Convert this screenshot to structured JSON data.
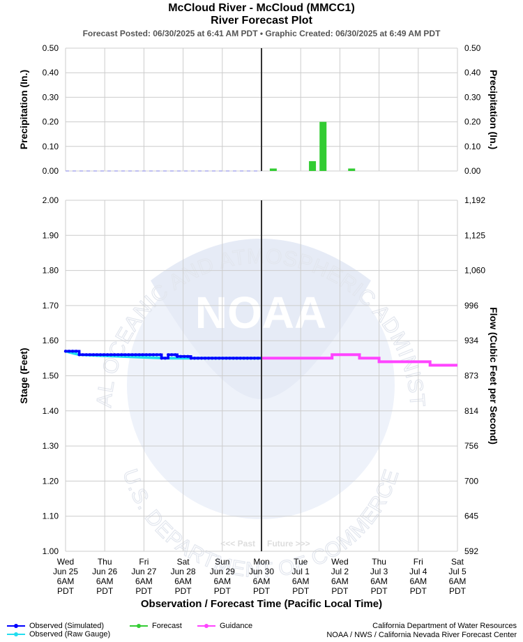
{
  "header": {
    "title_line1": "McCloud River - McCloud (MMCC1)",
    "title_line2": "River Forecast Plot",
    "subtitle": "Forecast Posted: 06/30/2025 at 6:41 AM PDT  •  Graphic Created: 06/30/2025 at 6:49 AM PDT"
  },
  "chart_data": [
    {
      "type": "bar",
      "name": "precipitation",
      "ylabel": "Precipitation (In.)",
      "ylabel_right": "Precipitation (In.)",
      "ylim": [
        0,
        0.5
      ],
      "yticks": [
        "0.00",
        "0.10",
        "0.20",
        "0.30",
        "0.40",
        "0.50"
      ],
      "grid": true,
      "observed_baseline": {
        "x_start": 0,
        "x_end": 5,
        "value": 0.0
      },
      "forecast_bars": [
        {
          "x": 5.3,
          "value": 0.01
        },
        {
          "x": 6.3,
          "value": 0.04
        },
        {
          "x": 6.57,
          "value": 0.2
        },
        {
          "x": 7.3,
          "value": 0.01
        }
      ]
    },
    {
      "type": "line",
      "name": "stage",
      "ylabel": "Stage (Feet)",
      "ylabel_right": "Flow (Cubic Feet per Second)",
      "xlabel": "Observation / Forecast Time (Pacific Local Time)",
      "ylim": [
        1.0,
        2.0
      ],
      "yticks": [
        "1.00",
        "1.10",
        "1.20",
        "1.30",
        "1.40",
        "1.50",
        "1.60",
        "1.70",
        "1.80",
        "1.90",
        "2.00"
      ],
      "yticks_right": [
        "592",
        "645",
        "700",
        "756",
        "814",
        "873",
        "934",
        "996",
        "1,060",
        "1,125",
        "1,192"
      ],
      "grid": true,
      "x_tick_labels": [
        [
          "Wed",
          "Jun 25",
          "6AM",
          "PDT"
        ],
        [
          "Thu",
          "Jun 26",
          "6AM",
          "PDT"
        ],
        [
          "Fri",
          "Jun 27",
          "6AM",
          "PDT"
        ],
        [
          "Sat",
          "Jun 28",
          "6AM",
          "PDT"
        ],
        [
          "Sun",
          "Jun 29",
          "6AM",
          "PDT"
        ],
        [
          "Mon",
          "Jun 30",
          "6AM",
          "PDT"
        ],
        [
          "Tue",
          "Jul 1",
          "6AM",
          "PDT"
        ],
        [
          "Wed",
          "Jul 2",
          "6AM",
          "PDT"
        ],
        [
          "Thu",
          "Jul 3",
          "6AM",
          "PDT"
        ],
        [
          "Fri",
          "Jul 4",
          "6AM",
          "PDT"
        ],
        [
          "Sat",
          "Jul 5",
          "6AM",
          "PDT"
        ]
      ],
      "now_x": 5,
      "past_label": "<<< Past",
      "future_label": "Future >>>",
      "series": [
        {
          "name": "Observed (Raw Gauge)",
          "points": [
            [
              0.0,
              1.57
            ],
            [
              0.35,
              1.56
            ],
            [
              2.55,
              1.55
            ],
            [
              2.75,
              1.55
            ],
            [
              5.0,
              1.55
            ]
          ]
        },
        {
          "name": "Observed (Simulated)",
          "points": [
            [
              0.0,
              1.57
            ],
            [
              0.35,
              1.57
            ],
            [
              0.35,
              1.56
            ],
            [
              2.45,
              1.56
            ],
            [
              2.45,
              1.55
            ],
            [
              2.62,
              1.55
            ],
            [
              2.62,
              1.56
            ],
            [
              2.85,
              1.56
            ],
            [
              2.85,
              1.555
            ],
            [
              3.2,
              1.555
            ],
            [
              3.2,
              1.55
            ],
            [
              5.0,
              1.55
            ]
          ]
        },
        {
          "name": "Guidance",
          "points": [
            [
              5.0,
              1.55
            ],
            [
              6.8,
              1.55
            ],
            [
              6.8,
              1.56
            ],
            [
              7.5,
              1.56
            ],
            [
              7.5,
              1.55
            ],
            [
              8.0,
              1.55
            ],
            [
              8.0,
              1.54
            ],
            [
              9.3,
              1.54
            ],
            [
              9.3,
              1.53
            ],
            [
              10.0,
              1.53
            ]
          ]
        }
      ]
    }
  ],
  "legend": {
    "observed_simulated": "Observed (Simulated)",
    "observed_raw": "Observed (Raw Gauge)",
    "forecast": "Forecast",
    "guidance": "Guidance"
  },
  "credits": {
    "line1": "California Department of Water Resources",
    "line2": "NOAA / NWS / California Nevada River Forecast Center"
  },
  "watermark": {
    "text_top": "NATIONAL OCEANIC AND ATMOSPHERIC ADMINISTRATION",
    "text_bottom": "U.S. DEPARTMENT OF COMMERCE",
    "logo": "NOAA"
  },
  "colors": {
    "observed_simulated": "#0000ff",
    "observed_raw": "#22ddee",
    "forecast": "#33cc33",
    "guidance": "#ff44ff",
    "now_line": "#333333",
    "grid": "#cccccc",
    "watermark": "#e6ebf6"
  }
}
